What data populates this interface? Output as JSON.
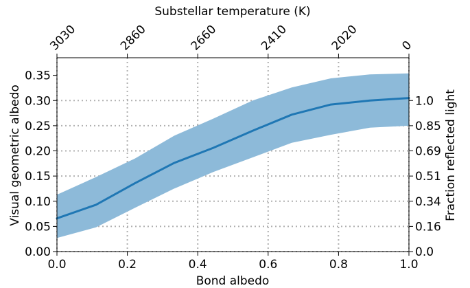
{
  "chart_data": {
    "type": "line",
    "title": "",
    "xlabel": "Bond albedo",
    "ylabel": "Visual geometric albedo",
    "top_xlabel": "Substellar temperature (K)",
    "right_ylabel": "Fraction reflected light",
    "xlim": [
      0.0,
      1.0
    ],
    "ylim": [
      0.0,
      0.385
    ],
    "x_ticks": [
      0.0,
      0.2,
      0.4,
      0.6,
      0.8,
      1.0
    ],
    "x_tick_labels": [
      "0.0",
      "0.2",
      "0.4",
      "0.6",
      "0.8",
      "1.0"
    ],
    "y_ticks": [
      0.0,
      0.05,
      0.1,
      0.15,
      0.2,
      0.25,
      0.3,
      0.35
    ],
    "y_tick_labels": [
      "0.00",
      "0.05",
      "0.10",
      "0.15",
      "0.20",
      "0.25",
      "0.30",
      "0.35"
    ],
    "top_ticks_at_bond_albedo": [
      0.0,
      0.2,
      0.4,
      0.6,
      0.8,
      1.0
    ],
    "top_tick_labels": [
      "3030",
      "2860",
      "2660",
      "2410",
      "2020",
      "0"
    ],
    "right_ticks_at_geometric_albedo": [
      0.0,
      0.05,
      0.1,
      0.15,
      0.2,
      0.25,
      0.3
    ],
    "right_tick_labels": [
      "0.0",
      "0.16",
      "0.34",
      "0.51",
      "0.69",
      "0.85",
      "1.0"
    ],
    "grid": "dotted, at top-axis and right-axis ticks",
    "series": [
      {
        "x": [
          0.0,
          0.111,
          0.222,
          0.333,
          0.444,
          0.556,
          0.667,
          0.778,
          0.889,
          1.0
        ],
        "y": [
          0.066,
          0.093,
          0.136,
          0.176,
          0.206,
          0.24,
          0.272,
          0.292,
          0.3,
          0.305
        ],
        "y_low": [
          0.027,
          0.048,
          0.087,
          0.125,
          0.158,
          0.187,
          0.216,
          0.232,
          0.246,
          0.25
        ],
        "y_high": [
          0.113,
          0.148,
          0.185,
          0.23,
          0.264,
          0.3,
          0.326,
          0.344,
          0.352,
          0.354
        ],
        "color": "#1f77b4",
        "band_color": "#8dbad9"
      }
    ]
  }
}
